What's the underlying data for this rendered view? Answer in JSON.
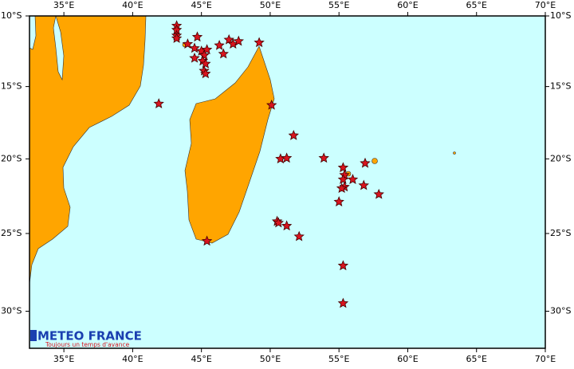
{
  "chart_data": {
    "type": "map",
    "projection": "mercator",
    "xlim": [
      32.5,
      70
    ],
    "ylim": [
      -10,
      -32.3
    ],
    "xticks": [
      {
        "value": 35,
        "label": "35°E"
      },
      {
        "value": 40,
        "label": "40°E"
      },
      {
        "value": 45,
        "label": "45°E"
      },
      {
        "value": 50,
        "label": "50°E"
      },
      {
        "value": 55,
        "label": "55°E"
      },
      {
        "value": 60,
        "label": "60°E"
      },
      {
        "value": 65,
        "label": "65°E"
      },
      {
        "value": 70,
        "label": "70°E"
      }
    ],
    "yticks": [
      {
        "value": -10,
        "label": "10°S"
      },
      {
        "value": -15,
        "label": "15°S"
      },
      {
        "value": -20,
        "label": "20°S"
      },
      {
        "value": -25,
        "label": "25°S"
      },
      {
        "value": -30,
        "label": "30°S"
      }
    ],
    "color": "#d8141e",
    "x": [
      43.2,
      43.2,
      43.2,
      43.2,
      44.0,
      44.7,
      44.5,
      45.0,
      45.4,
      45.2,
      44.5,
      45.1,
      45.3,
      45.2,
      45.3,
      46.3,
      46.6,
      47.0,
      47.3,
      47.7,
      49.2,
      41.9,
      50.1,
      51.7,
      50.75,
      51.2,
      53.9,
      55.3,
      55.4,
      55.3,
      56.0,
      55.4,
      55.2,
      56.8,
      56.9,
      57.9,
      55.0,
      50.5,
      50.6,
      51.2,
      52.1,
      45.4,
      55.3,
      55.3
    ],
    "values": [
      -10.7,
      -11.0,
      -11.4,
      -11.6,
      -12.0,
      -11.5,
      -12.3,
      -12.5,
      -12.4,
      -12.8,
      -13.0,
      -13.2,
      -13.4,
      -13.9,
      -14.1,
      -12.1,
      -12.7,
      -11.7,
      -12.0,
      -11.8,
      -11.9,
      -16.2,
      -16.3,
      -18.4,
      -20.0,
      -19.95,
      -19.95,
      -20.6,
      -21.1,
      -21.4,
      -21.4,
      -21.9,
      -22.0,
      -21.8,
      -20.3,
      -22.4,
      -22.9,
      -24.2,
      -24.3,
      -24.5,
      -25.2,
      -25.5,
      -27.1,
      -29.5
    ],
    "logo": {
      "name": "METEO FRANCE",
      "tagline": "Toujours un temps d'avance"
    }
  }
}
